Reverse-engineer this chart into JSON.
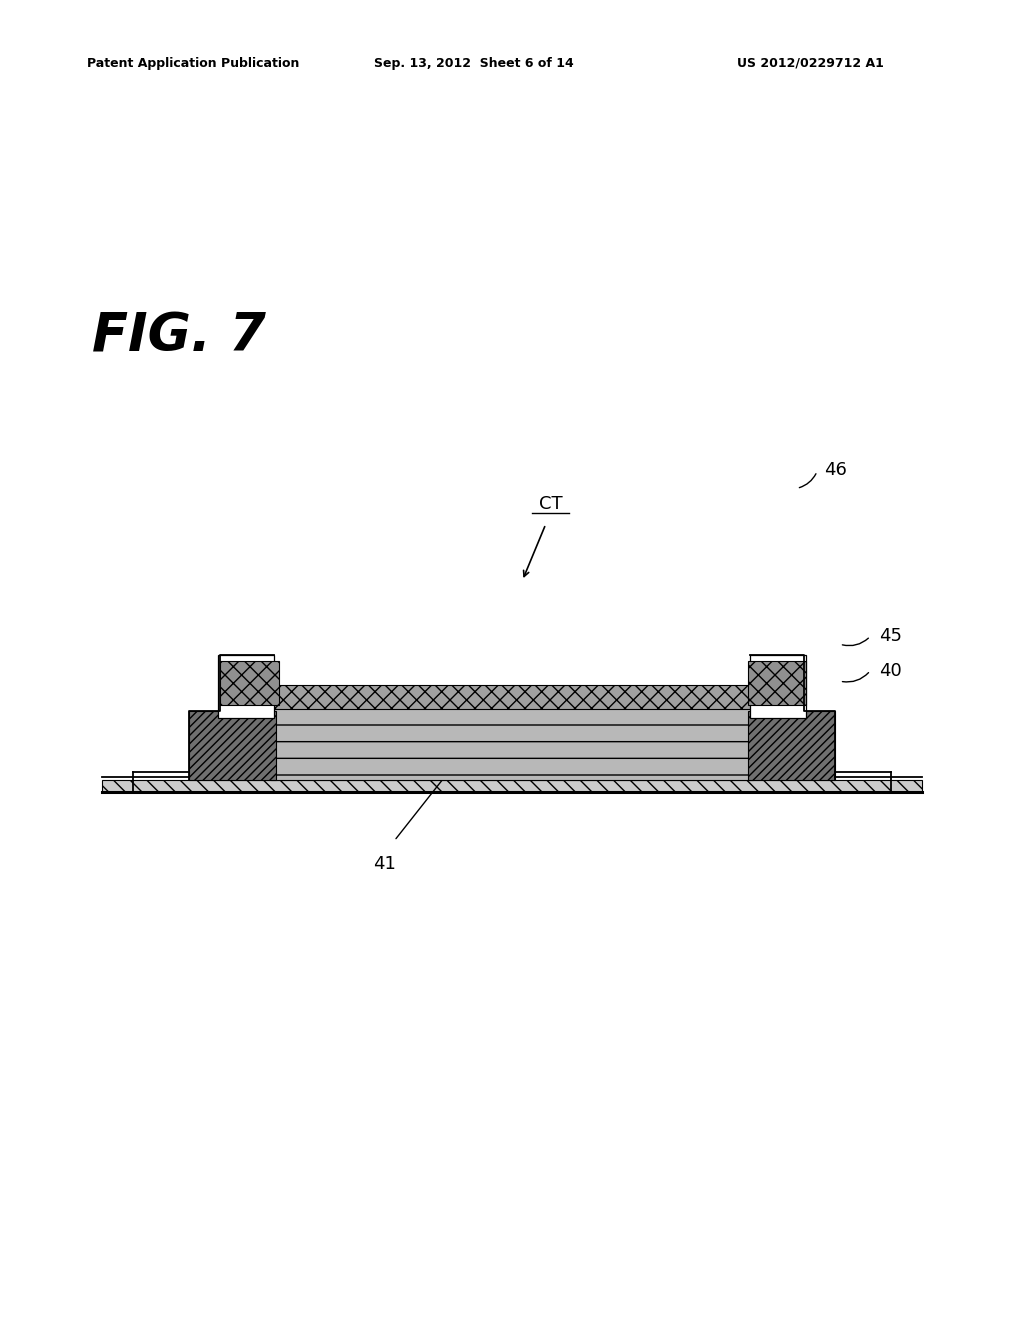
{
  "bg_color": "#ffffff",
  "header_text": "Patent Application Publication",
  "header_date": "Sep. 13, 2012  Sheet 6 of 14",
  "header_patent": "US 2012/0229712 A1",
  "fig_label": "FIG. 7",
  "label_CT": "CT",
  "label_46": "46",
  "label_45": "45",
  "label_40": "40",
  "label_41": "41"
}
